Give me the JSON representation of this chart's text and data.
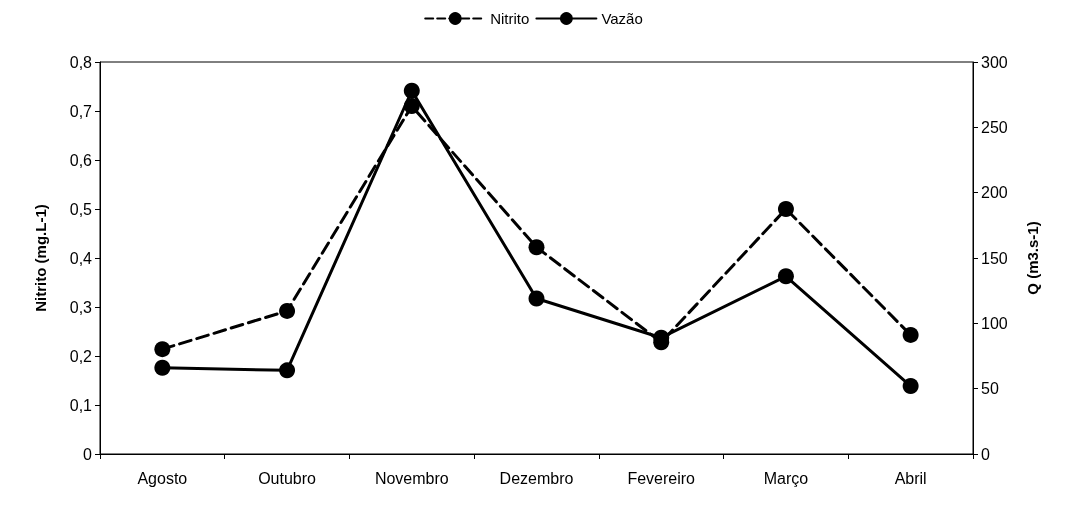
{
  "chart_data": {
    "type": "line",
    "categories": [
      "Agosto",
      "Outubro",
      "Novembro",
      "Dezembro",
      "Fevereiro",
      "Março",
      "Abril"
    ],
    "series": [
      {
        "name": "Nitrito",
        "color": "#000000",
        "line_style": "dashed",
        "values": [
          0.214,
          0.292,
          0.71,
          0.422,
          0.228,
          0.5,
          0.243
        ]
      },
      {
        "name": "Vazão",
        "color": "#000000",
        "line_style": "solid",
        "axis": "y2",
        "values": [
          66,
          64,
          278,
          119,
          89,
          136,
          52
        ]
      }
    ],
    "ylabel": "Nitrito (mg.L-1)",
    "y2label": "Q (m3.s-1)",
    "ylim": [
      0,
      0.8
    ],
    "yticks": [
      0,
      {
        "value": 0.1,
        "label": "0,1"
      },
      {
        "value": 0.2,
        "label": "0,2"
      },
      {
        "value": 0.3,
        "label": "0,3"
      },
      {
        "value": 0.4,
        "label": "0,4"
      },
      {
        "value": 0.5,
        "label": "0,5"
      },
      {
        "value": 0.6,
        "label": "0,6"
      },
      {
        "value": 0.7,
        "label": "0,7"
      },
      {
        "value": 0.8,
        "label": "0,8"
      }
    ],
    "y2lim": [
      0,
      300
    ],
    "y2ticks": [
      0,
      50,
      100,
      150,
      200,
      250,
      300
    ],
    "marker": "circle",
    "grid": false,
    "legend": "top"
  }
}
